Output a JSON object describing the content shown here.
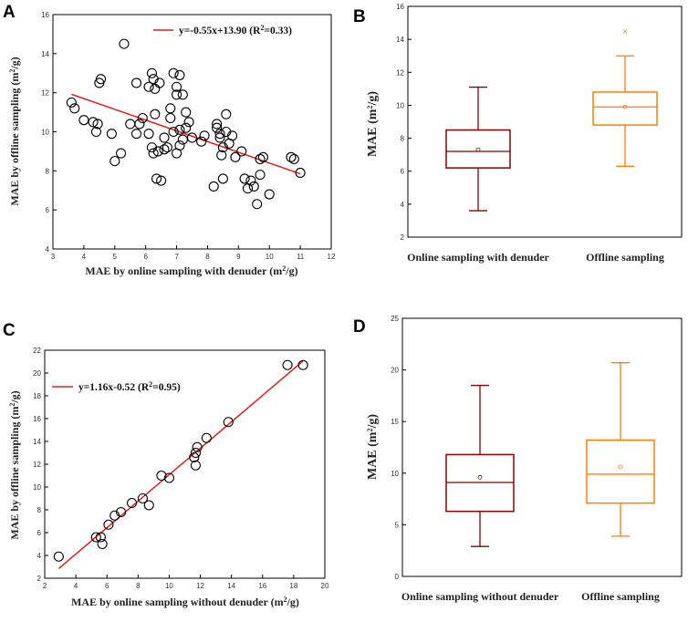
{
  "chart_data": [
    {
      "panel": "A",
      "type": "scatter",
      "xlabel": "MAE by online sampling with denuder (m²/g)",
      "ylabel": "MAE by offline sampling (m²/g)",
      "xlim": [
        3,
        12
      ],
      "ylim": [
        4,
        16
      ],
      "xticks": [
        "3",
        "4",
        "5",
        "6",
        "7",
        "8",
        "9",
        "10",
        "11",
        "12"
      ],
      "yticks": [
        "4",
        "6",
        "8",
        "10",
        "12",
        "14",
        "16"
      ],
      "legend": "y=-0.55x+13.90 (R²=0.33)",
      "fit": {
        "slope": -0.55,
        "intercept": 13.9,
        "x_range": [
          3.6,
          11.0
        ]
      },
      "points": [
        [
          3.6,
          11.5
        ],
        [
          3.7,
          11.2
        ],
        [
          4.0,
          10.6
        ],
        [
          4.3,
          10.5
        ],
        [
          4.4,
          10.0
        ],
        [
          4.45,
          10.4
        ],
        [
          4.5,
          12.5
        ],
        [
          4.55,
          12.7
        ],
        [
          4.9,
          9.9
        ],
        [
          5.0,
          8.5
        ],
        [
          5.2,
          8.9
        ],
        [
          5.3,
          14.5
        ],
        [
          5.5,
          10.4
        ],
        [
          5.7,
          9.9
        ],
        [
          5.7,
          12.5
        ],
        [
          5.8,
          10.4
        ],
        [
          5.9,
          10.7
        ],
        [
          6.1,
          9.9
        ],
        [
          6.1,
          12.3
        ],
        [
          6.2,
          13.0
        ],
        [
          6.2,
          9.2
        ],
        [
          6.25,
          12.7
        ],
        [
          6.25,
          8.9
        ],
        [
          6.3,
          10.9
        ],
        [
          6.3,
          12.2
        ],
        [
          6.35,
          7.6
        ],
        [
          6.4,
          9.0
        ],
        [
          6.45,
          12.5
        ],
        [
          6.5,
          7.5
        ],
        [
          6.6,
          9.1
        ],
        [
          6.6,
          9.7
        ],
        [
          6.7,
          9.2
        ],
        [
          6.8,
          10.7
        ],
        [
          6.8,
          11.2
        ],
        [
          6.9,
          13.0
        ],
        [
          6.9,
          10.0
        ],
        [
          7.0,
          11.9
        ],
        [
          7.0,
          8.9
        ],
        [
          7.0,
          12.3
        ],
        [
          7.1,
          9.3
        ],
        [
          7.1,
          10.1
        ],
        [
          7.1,
          12.9
        ],
        [
          7.2,
          11.9
        ],
        [
          7.2,
          9.6
        ],
        [
          7.3,
          10.2
        ],
        [
          7.3,
          11.0
        ],
        [
          7.4,
          10.5
        ],
        [
          7.5,
          9.7
        ],
        [
          7.8,
          9.5
        ],
        [
          7.9,
          9.8
        ],
        [
          8.2,
          7.2
        ],
        [
          8.3,
          10.4
        ],
        [
          8.3,
          10.2
        ],
        [
          8.4,
          9.7
        ],
        [
          8.4,
          9.9
        ],
        [
          8.45,
          8.8
        ],
        [
          8.5,
          9.2
        ],
        [
          8.5,
          7.6
        ],
        [
          8.6,
          10.9
        ],
        [
          8.6,
          10.0
        ],
        [
          8.7,
          9.4
        ],
        [
          8.8,
          9.8
        ],
        [
          8.9,
          8.7
        ],
        [
          9.1,
          9.0
        ],
        [
          9.2,
          7.6
        ],
        [
          9.3,
          7.1
        ],
        [
          9.4,
          7.5
        ],
        [
          9.5,
          7.2
        ],
        [
          9.6,
          6.3
        ],
        [
          9.7,
          7.8
        ],
        [
          9.7,
          8.6
        ],
        [
          9.8,
          8.7
        ],
        [
          10.0,
          6.8
        ],
        [
          10.7,
          8.7
        ],
        [
          10.8,
          8.6
        ],
        [
          11.0,
          7.9
        ]
      ]
    },
    {
      "panel": "B",
      "type": "box",
      "ylabel": "MAE (m²/g)",
      "ylim": [
        2,
        16
      ],
      "yticks": [
        "2",
        "4",
        "6",
        "8",
        "10",
        "12",
        "14",
        "16"
      ],
      "categories": [
        "Online sampling with denuder",
        "Offline sampling"
      ],
      "boxes": [
        {
          "min": 3.6,
          "q1": 6.2,
          "median": 7.2,
          "mean": 7.3,
          "q3": 8.5,
          "max": 11.1,
          "outliers": [],
          "color": "#8b0000"
        },
        {
          "min": 6.3,
          "q1": 8.8,
          "median": 9.9,
          "mean": 9.9,
          "q3": 10.8,
          "max": 13.0,
          "outliers": [
            14.5
          ],
          "color": "#ff7f00"
        }
      ]
    },
    {
      "panel": "C",
      "type": "scatter",
      "xlabel": "MAE by online sampling without denuder (m²/g)",
      "ylabel": "MAE by offline sampling (m²/g)",
      "xlim": [
        2,
        20
      ],
      "ylim": [
        2,
        22
      ],
      "xticks": [
        "2",
        "4",
        "6",
        "8",
        "10",
        "12",
        "14",
        "16",
        "18",
        "20"
      ],
      "yticks": [
        "2",
        "4",
        "6",
        "8",
        "10",
        "12",
        "14",
        "16",
        "18",
        "20",
        "22"
      ],
      "legend": "y=1.16x-0.52 (R²=0.95)",
      "fit": {
        "slope": 1.16,
        "intercept": -0.52,
        "x_range": [
          2.9,
          18.6
        ]
      },
      "points": [
        [
          2.9,
          3.9
        ],
        [
          5.3,
          5.6
        ],
        [
          5.6,
          5.6
        ],
        [
          5.7,
          5.0
        ],
        [
          6.1,
          6.7
        ],
        [
          6.5,
          7.5
        ],
        [
          6.9,
          7.8
        ],
        [
          7.6,
          8.6
        ],
        [
          8.3,
          9.0
        ],
        [
          8.7,
          8.4
        ],
        [
          9.5,
          11.0
        ],
        [
          10.0,
          10.8
        ],
        [
          11.6,
          12.6
        ],
        [
          11.7,
          11.9
        ],
        [
          11.7,
          13.0
        ],
        [
          11.8,
          13.5
        ],
        [
          12.4,
          14.3
        ],
        [
          13.8,
          15.7
        ],
        [
          17.6,
          20.7
        ],
        [
          18.6,
          20.7
        ]
      ]
    },
    {
      "panel": "D",
      "type": "box",
      "ylabel": "MAE (m²/g)",
      "ylim": [
        0,
        25
      ],
      "yticks": [
        "0",
        "5",
        "10",
        "15",
        "20",
        "25"
      ],
      "categories": [
        "Online sampling without denuder",
        "Offline sampling"
      ],
      "boxes": [
        {
          "min": 2.9,
          "q1": 6.3,
          "median": 9.1,
          "mean": 9.6,
          "q3": 11.8,
          "max": 18.5,
          "outliers": [],
          "color": "#8b0000"
        },
        {
          "min": 3.9,
          "q1": 7.1,
          "median": 9.9,
          "mean": 10.6,
          "q3": 13.2,
          "max": 20.7,
          "outliers": [],
          "color": "#ff7f00"
        }
      ]
    }
  ]
}
